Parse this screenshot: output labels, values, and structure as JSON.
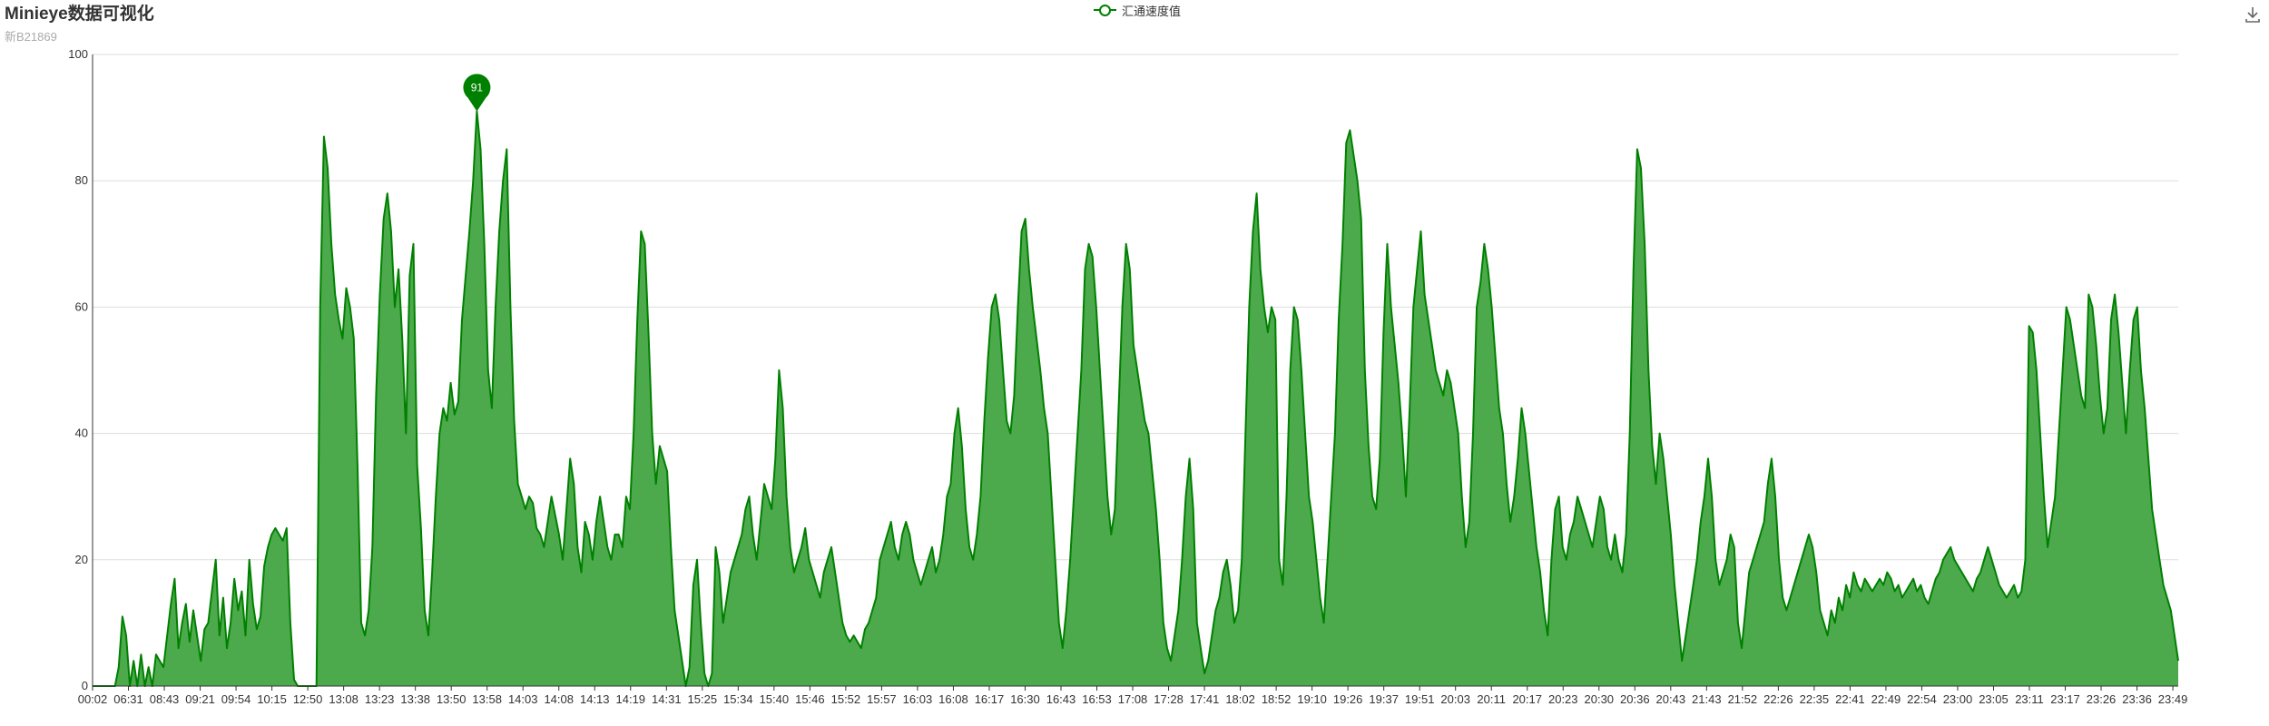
{
  "title": "Minieye数据可视化",
  "subtitle": "新B21869",
  "legend": {
    "label": "汇通速度值"
  },
  "colors": {
    "line": "#008000",
    "area": "#4caa4c",
    "marker": "#008000",
    "grid": "#dddddd",
    "axis": "#333333"
  },
  "icons": {
    "save": "download-icon"
  },
  "chart_data": {
    "type": "area",
    "title": "Minieye数据可视化",
    "subtitle": "新B21869",
    "series_name": "汇通速度值",
    "ylim": [
      0,
      100
    ],
    "y_ticks": [
      0,
      20,
      40,
      60,
      80,
      100
    ],
    "x_tick_labels": [
      "00:02",
      "06:31",
      "08:43",
      "09:21",
      "09:54",
      "10:15",
      "12:50",
      "13:08",
      "13:23",
      "13:38",
      "13:50",
      "13:58",
      "14:03",
      "14:08",
      "14:13",
      "14:19",
      "14:31",
      "15:25",
      "15:34",
      "15:40",
      "15:46",
      "15:52",
      "15:57",
      "16:03",
      "16:08",
      "16:17",
      "16:30",
      "16:43",
      "16:53",
      "17:08",
      "17:28",
      "17:41",
      "18:02",
      "18:52",
      "19:10",
      "19:26",
      "19:37",
      "19:51",
      "20:03",
      "20:11",
      "20:17",
      "20:23",
      "20:30",
      "20:36",
      "20:43",
      "21:43",
      "21:52",
      "22:26",
      "22:35",
      "22:41",
      "22:49",
      "22:54",
      "23:00",
      "23:05",
      "23:11",
      "23:17",
      "23:26",
      "23:36",
      "23:49"
    ],
    "grid": true,
    "legend_position": "top-center",
    "max_point": {
      "time": "13:50",
      "value": 91,
      "label": "91"
    },
    "values": [
      0,
      0,
      0,
      0,
      0,
      0,
      0,
      3,
      11,
      8,
      0,
      4,
      0,
      5,
      0,
      3,
      0,
      5,
      4,
      3,
      8,
      13,
      17,
      6,
      10,
      13,
      7,
      12,
      8,
      4,
      9,
      10,
      15,
      20,
      8,
      14,
      6,
      10,
      17,
      12,
      15,
      8,
      20,
      13,
      9,
      11,
      19,
      22,
      24,
      25,
      24,
      23,
      25,
      10,
      1,
      0,
      0,
      0,
      0,
      0,
      0,
      60,
      87,
      82,
      70,
      62,
      58,
      55,
      63,
      60,
      55,
      35,
      10,
      8,
      12,
      22,
      46,
      62,
      74,
      78,
      72,
      60,
      66,
      55,
      40,
      65,
      70,
      35,
      25,
      12,
      8,
      18,
      30,
      40,
      44,
      42,
      48,
      43,
      45,
      58,
      65,
      72,
      80,
      91,
      85,
      70,
      50,
      44,
      60,
      72,
      80,
      85,
      60,
      42,
      32,
      30,
      28,
      30,
      29,
      25,
      24,
      22,
      26,
      30,
      27,
      24,
      20,
      28,
      36,
      32,
      22,
      18,
      26,
      24,
      20,
      26,
      30,
      26,
      22,
      20,
      24,
      24,
      22,
      30,
      28,
      40,
      58,
      72,
      70,
      56,
      40,
      32,
      38,
      36,
      34,
      22,
      12,
      8,
      4,
      0,
      3,
      16,
      20,
      10,
      2,
      0,
      2,
      22,
      18,
      10,
      14,
      18,
      20,
      22,
      24,
      28,
      30,
      24,
      20,
      26,
      32,
      30,
      28,
      36,
      50,
      44,
      30,
      22,
      18,
      20,
      22,
      25,
      20,
      18,
      16,
      14,
      18,
      20,
      22,
      18,
      14,
      10,
      8,
      7,
      8,
      7,
      6,
      9,
      10,
      12,
      14,
      20,
      22,
      24,
      26,
      22,
      20,
      24,
      26,
      24,
      20,
      18,
      16,
      18,
      20,
      22,
      18,
      20,
      24,
      30,
      32,
      40,
      44,
      38,
      28,
      22,
      20,
      24,
      30,
      42,
      52,
      60,
      62,
      58,
      50,
      42,
      40,
      46,
      60,
      72,
      74,
      66,
      60,
      55,
      50,
      44,
      40,
      30,
      20,
      10,
      6,
      12,
      20,
      30,
      40,
      50,
      66,
      70,
      68,
      60,
      50,
      40,
      30,
      24,
      28,
      44,
      60,
      70,
      66,
      54,
      50,
      46,
      42,
      40,
      34,
      28,
      20,
      10,
      6,
      4,
      8,
      12,
      20,
      30,
      36,
      28,
      10,
      6,
      2,
      4,
      8,
      12,
      14,
      18,
      20,
      16,
      10,
      12,
      20,
      40,
      60,
      72,
      78,
      66,
      60,
      56,
      60,
      58,
      20,
      16,
      30,
      50,
      60,
      58,
      50,
      40,
      30,
      26,
      20,
      14,
      10,
      20,
      30,
      40,
      58,
      70,
      86,
      88,
      84,
      80,
      74,
      50,
      38,
      30,
      28,
      36,
      56,
      70,
      60,
      54,
      48,
      40,
      30,
      44,
      60,
      66,
      72,
      62,
      58,
      54,
      50,
      48,
      46,
      50,
      48,
      44,
      40,
      30,
      22,
      26,
      40,
      60,
      64,
      70,
      66,
      60,
      52,
      44,
      40,
      32,
      26,
      30,
      36,
      44,
      40,
      34,
      28,
      22,
      18,
      12,
      8,
      20,
      28,
      30,
      22,
      20,
      24,
      26,
      30,
      28,
      26,
      24,
      22,
      26,
      30,
      28,
      22,
      20,
      24,
      20,
      18,
      24,
      40,
      66,
      85,
      82,
      70,
      50,
      38,
      32,
      40,
      36,
      30,
      24,
      16,
      10,
      4,
      8,
      12,
      16,
      20,
      26,
      30,
      36,
      30,
      20,
      16,
      18,
      20,
      24,
      22,
      10,
      6,
      12,
      18,
      20,
      22,
      24,
      26,
      32,
      36,
      30,
      20,
      14,
      12,
      14,
      16,
      18,
      20,
      22,
      24,
      22,
      18,
      12,
      10,
      8,
      12,
      10,
      14,
      12,
      16,
      14,
      18,
      16,
      15,
      17,
      16,
      15,
      16,
      17,
      16,
      18,
      17,
      15,
      16,
      14,
      15,
      16,
      17,
      15,
      16,
      14,
      13,
      15,
      17,
      18,
      20,
      21,
      22,
      20,
      19,
      18,
      17,
      16,
      15,
      17,
      18,
      20,
      22,
      20,
      18,
      16,
      15,
      14,
      15,
      16,
      14,
      15,
      20,
      57,
      56,
      50,
      40,
      30,
      22,
      26,
      30,
      40,
      50,
      60,
      58,
      54,
      50,
      46,
      44,
      62,
      60,
      54,
      46,
      40,
      44,
      58,
      62,
      56,
      48,
      40,
      50,
      58,
      60,
      50,
      44,
      36,
      28,
      24,
      20,
      16,
      14,
      12,
      8,
      4
    ]
  }
}
